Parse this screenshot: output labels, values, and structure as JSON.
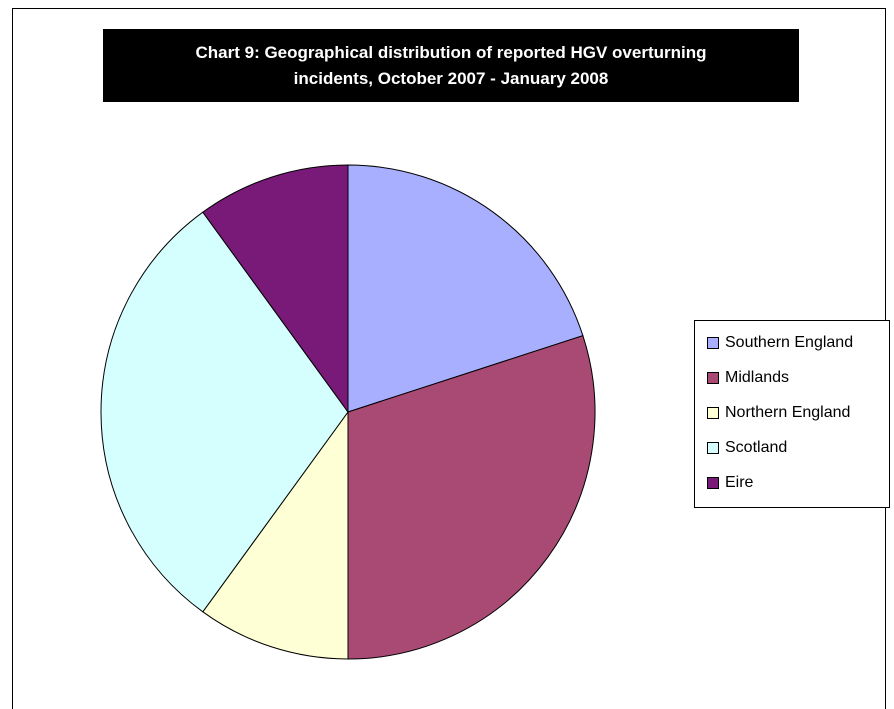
{
  "chart_data": {
    "type": "pie",
    "title_line1": "Chart 9: Geographical distribution of reported HGV overturning",
    "title_line2": "incidents, October 2007 - January 2008",
    "categories": [
      "Southern England",
      "Midlands",
      "Northern England",
      "Scotland",
      "Eire"
    ],
    "values": [
      20,
      30,
      10,
      30,
      10
    ],
    "colors": [
      "#A9AFFF",
      "#A94A74",
      "#FFFFD5",
      "#D5FFFF",
      "#7A1A78"
    ],
    "start_angle_deg": 0,
    "direction": "clockwise",
    "legend_position": "right"
  }
}
